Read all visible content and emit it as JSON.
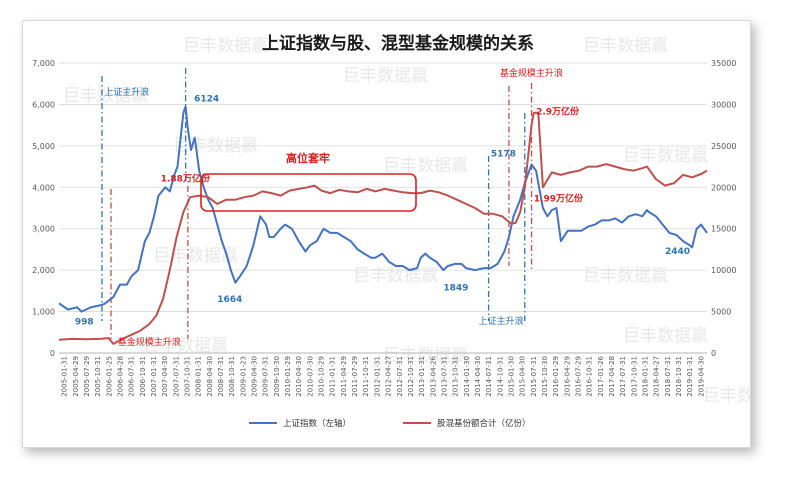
{
  "chart_data": {
    "type": "line",
    "title": "上证指数与股、混型基金规模的关系",
    "watermark": "巨丰数据赢",
    "y_left": {
      "ylim": [
        0,
        7000
      ],
      "ticks": [
        "0",
        "1,000",
        "2,000",
        "3,000",
        "4,000",
        "5,000",
        "6,000",
        "7,000"
      ]
    },
    "y_right": {
      "ylim": [
        0,
        35000
      ],
      "ticks": [
        "0",
        "5000",
        "10000",
        "15000",
        "20000",
        "25000",
        "30000",
        "35000"
      ]
    },
    "x_range": [
      2005.0,
      2019.33
    ],
    "x_ticks": [
      "2005-01-31",
      "2005-04-29",
      "2005-07-29",
      "2005-10-31",
      "2006-01-25",
      "2006-04-28",
      "2006-07-31",
      "2006-10-31",
      "2007-01-31",
      "2007-04-30",
      "2007-07-31",
      "2007-10-31",
      "2008-01-31",
      "2008-04-30",
      "2008-07-31",
      "2008-10-31",
      "2009-01-23",
      "2009-04-30",
      "2009-07-31",
      "2009-10-30",
      "2010-01-29",
      "2010-04-30",
      "2010-07-30",
      "2010-10-29",
      "2011-01-31",
      "2011-04-29",
      "2011-07-29",
      "2011-10-31",
      "2012-01-31",
      "2012-04-27",
      "2012-07-31",
      "2012-10-31",
      "2013-01-31",
      "2013-04-26",
      "2013-07-31",
      "2013-10-31",
      "2014-01-30",
      "2014-04-30",
      "2014-07-31",
      "2014-10-31",
      "2015-01-30",
      "2015-04-30",
      "2015-07-31",
      "2015-10-30",
      "2016-01-29",
      "2016-04-29",
      "2016-07-29",
      "2016-10-31",
      "2017-01-26",
      "2017-04-28",
      "2017-07-31",
      "2017-10-31",
      "2018-01-31",
      "2018-04-27",
      "2018-07-31",
      "2018-10-31",
      "2019-01-31",
      "2019-04-30"
    ],
    "series": [
      {
        "name": "上证指数（左轴）",
        "axis": "left",
        "color": "#4472c4",
        "x": [
          2005.0,
          2005.2,
          2005.4,
          2005.5,
          2005.7,
          2005.9,
          2006.0,
          2006.2,
          2006.35,
          2006.5,
          2006.6,
          2006.75,
          2006.9,
          2007.0,
          2007.1,
          2007.2,
          2007.35,
          2007.45,
          2007.55,
          2007.62,
          2007.7,
          2007.75,
          2007.8,
          2007.85,
          2007.92,
          2008.0,
          2008.1,
          2008.2,
          2008.3,
          2008.4,
          2008.5,
          2008.6,
          2008.7,
          2008.8,
          2008.9,
          2009.0,
          2009.15,
          2009.3,
          2009.45,
          2009.58,
          2009.65,
          2009.75,
          2009.9,
          2010.0,
          2010.15,
          2010.3,
          2010.45,
          2010.55,
          2010.7,
          2010.85,
          2011.0,
          2011.15,
          2011.3,
          2011.45,
          2011.6,
          2011.75,
          2011.9,
          2012.0,
          2012.15,
          2012.3,
          2012.45,
          2012.6,
          2012.75,
          2012.92,
          2013.0,
          2013.1,
          2013.2,
          2013.35,
          2013.5,
          2013.6,
          2013.75,
          2013.9,
          2014.0,
          2014.2,
          2014.4,
          2014.55,
          2014.7,
          2014.85,
          2014.95,
          2015.05,
          2015.2,
          2015.3,
          2015.4,
          2015.45,
          2015.55,
          2015.6,
          2015.7,
          2015.8,
          2015.9,
          2016.0,
          2016.1,
          2016.25,
          2016.4,
          2016.55,
          2016.7,
          2016.85,
          2017.0,
          2017.15,
          2017.3,
          2017.45,
          2017.6,
          2017.75,
          2017.9,
          2018.0,
          2018.05,
          2018.2,
          2018.35,
          2018.5,
          2018.65,
          2018.8,
          2018.95,
          2019.0,
          2019.1,
          2019.2,
          2019.33
        ],
        "y": [
          1200,
          1050,
          1100,
          1000,
          1100,
          1150,
          1180,
          1350,
          1650,
          1650,
          1850,
          2000,
          2700,
          2900,
          3300,
          3800,
          4000,
          3900,
          4300,
          4500,
          5300,
          5800,
          5950,
          5400,
          4900,
          5200,
          4400,
          4000,
          3700,
          3500,
          3100,
          2700,
          2400,
          2000,
          1700,
          1850,
          2100,
          2600,
          3300,
          3100,
          2800,
          2800,
          3000,
          3100,
          3000,
          2700,
          2450,
          2600,
          2700,
          3000,
          2900,
          2900,
          2800,
          2700,
          2500,
          2400,
          2300,
          2300,
          2400,
          2200,
          2100,
          2100,
          2000,
          2050,
          2300,
          2400,
          2300,
          2200,
          2000,
          2100,
          2150,
          2150,
          2050,
          2000,
          2050,
          2050,
          2150,
          2450,
          2800,
          3300,
          3700,
          4100,
          4400,
          4550,
          4400,
          4100,
          3500,
          3300,
          3450,
          3500,
          2700,
          2950,
          2950,
          2950,
          3050,
          3100,
          3200,
          3200,
          3250,
          3150,
          3300,
          3350,
          3300,
          3450,
          3400,
          3300,
          3100,
          2900,
          2850,
          2700,
          2600,
          2550,
          3000,
          3100,
          2900
        ]
      },
      {
        "name": "股混基份额合计（亿份）",
        "axis": "right",
        "color": "#c0504d",
        "x": [
          2005.0,
          2005.3,
          2005.6,
          2005.9,
          2006.1,
          2006.2,
          2006.4,
          2006.6,
          2006.8,
          2007.0,
          2007.15,
          2007.3,
          2007.45,
          2007.6,
          2007.75,
          2007.9,
          2008.1,
          2008.3,
          2008.5,
          2008.7,
          2008.9,
          2009.1,
          2009.3,
          2009.5,
          2009.7,
          2009.9,
          2010.1,
          2010.3,
          2010.5,
          2010.65,
          2010.8,
          2011.0,
          2011.2,
          2011.4,
          2011.6,
          2011.8,
          2012.0,
          2012.2,
          2012.4,
          2012.6,
          2012.8,
          2013.0,
          2013.2,
          2013.4,
          2013.6,
          2013.8,
          2014.0,
          2014.2,
          2014.4,
          2014.6,
          2014.8,
          2015.0,
          2015.1,
          2015.2,
          2015.3,
          2015.35,
          2015.4,
          2015.45,
          2015.5,
          2015.6,
          2015.7,
          2015.9,
          2016.1,
          2016.3,
          2016.5,
          2016.7,
          2016.9,
          2017.1,
          2017.3,
          2017.5,
          2017.7,
          2017.9,
          2018.0,
          2018.2,
          2018.4,
          2018.6,
          2018.8,
          2019.0,
          2019.2,
          2019.33
        ],
        "y": [
          1600,
          1700,
          1650,
          1700,
          1800,
          1100,
          1700,
          2200,
          2700,
          3500,
          4500,
          6500,
          10000,
          14000,
          17000,
          18800,
          19000,
          18800,
          18000,
          18500,
          18500,
          18800,
          19000,
          19500,
          19300,
          19000,
          19600,
          19800,
          20000,
          20200,
          19600,
          19300,
          19700,
          19500,
          19400,
          19800,
          19500,
          19800,
          19600,
          19400,
          19300,
          19300,
          19600,
          19400,
          19000,
          18500,
          18000,
          17500,
          16800,
          16800,
          16500,
          15600,
          15700,
          17000,
          20000,
          22500,
          25000,
          27500,
          29000,
          29000,
          20000,
          21800,
          21500,
          21800,
          22000,
          22500,
          22500,
          22800,
          22500,
          22200,
          22000,
          22300,
          22500,
          21000,
          20200,
          20500,
          21500,
          21200,
          21600,
          22000
        ]
      }
    ],
    "annotations": {
      "peak_2007": "6124",
      "low_2008": "1664",
      "low_2013": "1849",
      "peak_2015": "5178",
      "low_2019": "2440",
      "share_2007": "1.88万亿份",
      "share_2015_peak": "2.9万亿份",
      "share_2015_after": "1.99万亿份",
      "index_low_2005": "998",
      "box_label": "高位套牢",
      "index_wave_1": "上证主升浪",
      "index_wave_2": "上证主升浪",
      "fund_wave_1": "基金规模主升浪",
      "fund_wave_2": "基金规模主升浪"
    },
    "legend": {
      "placement": "bottom"
    },
    "grid": true
  }
}
